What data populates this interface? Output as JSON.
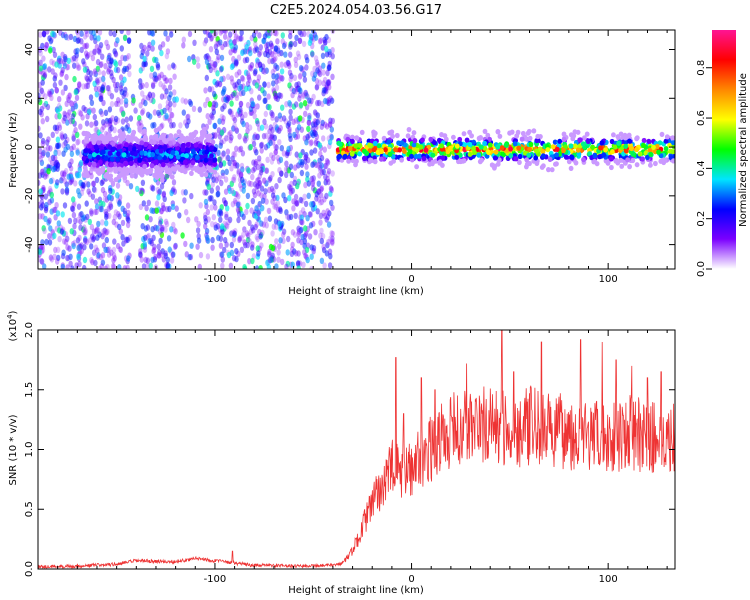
{
  "title": "C2E5.2024.054.03.56.G17",
  "chart_data": [
    {
      "type": "heatmap",
      "xlabel": "Height of straight line (km)",
      "ylabel": "Frequency (Hz)",
      "xlim": [
        -190,
        134
      ],
      "ylim": [
        -50,
        48
      ],
      "x_ticks": [
        -100,
        0,
        100
      ],
      "y_ticks": [
        -40,
        -20,
        0,
        20,
        40
      ],
      "grid": false,
      "band": {
        "segments": [
          {
            "x_start": -167,
            "x_end": -100,
            "center_hz": -3,
            "width_hz": 8,
            "amplitude": 0.35
          },
          {
            "x_start": -38,
            "x_end": 134,
            "center_hz": -1,
            "width_hz": 6,
            "amplitude": 0.85
          }
        ]
      },
      "noise": {
        "x_start": -190,
        "x_end": -40,
        "freq_range": [
          -50,
          48
        ],
        "amplitude": 0.1
      }
    },
    {
      "type": "colorbar",
      "label": "Normalized spectral amplitude",
      "lim": [
        0,
        0.95
      ],
      "ticks": [
        "0.0",
        "0.2",
        "0.4",
        "0.6",
        "0.8"
      ],
      "tick_values": [
        0,
        0.2,
        0.4,
        0.6,
        0.8
      ],
      "colors": [
        "#ffffff",
        "#7b00ff",
        "#0000ff",
        "#00e5ff",
        "#00ff00",
        "#ffff00",
        "#ff8800",
        "#ff0000",
        "#ff1493"
      ]
    },
    {
      "type": "line",
      "xlabel": "Height of straight line (km)",
      "ylabel": "SNR (10 * v/v)",
      "y_multiplier": "(x10",
      "y_multiplier_exp": "4",
      "xlim": [
        -190,
        134
      ],
      "ylim": [
        0,
        20000
      ],
      "x_ticks": [
        -100,
        0,
        100
      ],
      "y_ticks": [
        0,
        5000,
        10000,
        15000,
        20000
      ],
      "y_tick_labels": [
        "0.0",
        "0.5",
        "1.0",
        "1.5",
        "2.0"
      ],
      "grid": false,
      "series": [
        {
          "color": "#ee3333",
          "x": [
            -190,
            -170,
            -150,
            -140,
            -120,
            -110,
            -100,
            -80,
            -60,
            -40,
            -35,
            -30,
            -25,
            -20,
            -15,
            -10,
            -5,
            0,
            5,
            10,
            15,
            20,
            30,
            40,
            50,
            60,
            70,
            80,
            90,
            100,
            110,
            120,
            130,
            134
          ],
          "y": [
            200,
            250,
            400,
            700,
            600,
            900,
            700,
            300,
            250,
            300,
            500,
            1500,
            3500,
            5500,
            7000,
            8500,
            8000,
            8500,
            9500,
            10000,
            11000,
            11500,
            12000,
            12000,
            11500,
            12000,
            11500,
            11500,
            11000,
            11000,
            11500,
            11000,
            11000,
            11000
          ],
          "spikes": [
            [
              -91,
              1500
            ],
            [
              -8,
              17700
            ],
            [
              -4,
              13000
            ],
            [
              5,
              16000
            ],
            [
              12,
              15000
            ],
            [
              28,
              17200
            ],
            [
              46,
              20000
            ],
            [
              52,
              16500
            ],
            [
              66,
              19000
            ],
            [
              86,
              19200
            ],
            [
              97,
              19000
            ],
            [
              104,
              17500
            ],
            [
              112,
              17000
            ],
            [
              120,
              16000
            ],
            [
              127,
              16500
            ]
          ]
        }
      ]
    }
  ]
}
